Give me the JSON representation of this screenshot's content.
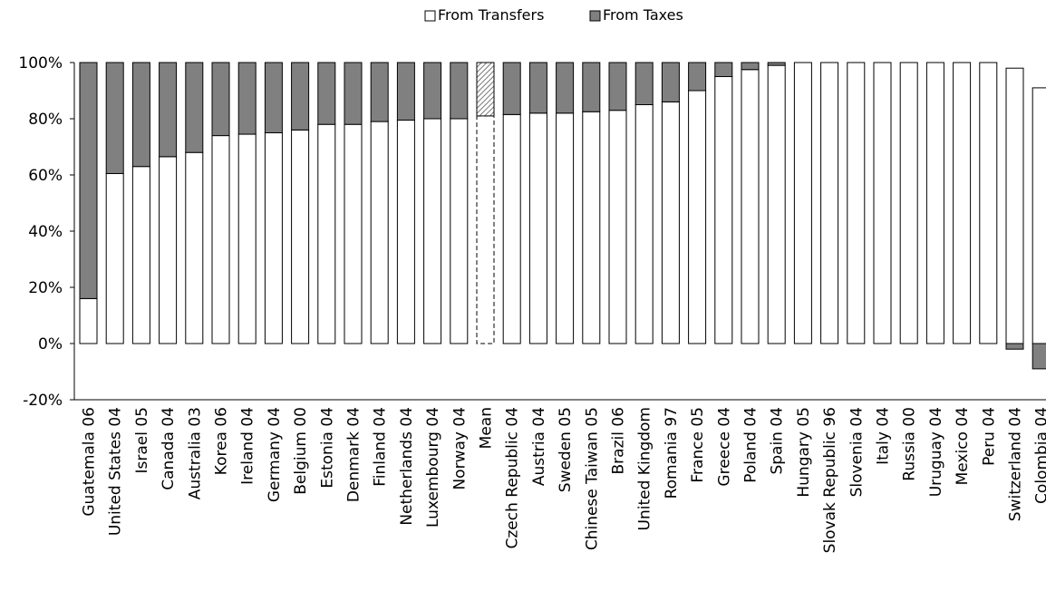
{
  "chart_data": {
    "type": "bar",
    "stacked": true,
    "legend": {
      "position": "top-center",
      "items": [
        {
          "label": "From Transfers",
          "color": "#ffffff"
        },
        {
          "label": "From Taxes",
          "color": "#808080"
        }
      ]
    },
    "yticks": [
      "-20%",
      "0%",
      "20%",
      "40%",
      "60%",
      "80%",
      "100%"
    ],
    "ylim": [
      -20,
      100
    ],
    "grid": false,
    "highlight_category": "Mean",
    "categories": [
      "Guatemala 06",
      "United States 04",
      "Israel 05",
      "Canada 04",
      "Australia 03",
      "Korea 06",
      "Ireland 04",
      "Germany 04",
      "Belgium 00",
      "Estonia 04",
      "Denmark 04",
      "Finland 04",
      "Netherlands 04",
      "Luxembourg 04",
      "Norway 04",
      "Mean",
      "Czech Republic 04",
      "Austria 04",
      "Sweden 05",
      "Chinese Taiwan 05",
      "Brazil 06",
      "United Kingdom",
      "Romania 97",
      "France 05",
      "Greece 04",
      "Poland 04",
      "Spain 04",
      "Hungary 05",
      "Slovak Republic 96",
      "Slovenia 04",
      "Italy 04",
      "Russia 00",
      "Uruguay 04",
      "Mexico 04",
      "Peru 04",
      "Switzerland 04",
      "Colombia 04"
    ],
    "series": [
      {
        "name": "From Transfers",
        "color": "#ffffff",
        "values": [
          16,
          60.5,
          63,
          66.5,
          68,
          74,
          74.5,
          75,
          76,
          78,
          78,
          79,
          79.5,
          80,
          80,
          81,
          81.5,
          82,
          82,
          82.5,
          83,
          85,
          86,
          90,
          95,
          97.5,
          99,
          100,
          100,
          100,
          100,
          100,
          100,
          100,
          100,
          98,
          91
        ]
      },
      {
        "name": "From Taxes",
        "color": "#808080",
        "values": [
          84,
          39.5,
          37,
          33.5,
          32,
          26,
          25.5,
          25,
          24,
          22,
          22,
          21,
          20.5,
          20,
          20,
          19,
          18.5,
          18,
          18,
          17.5,
          17,
          15,
          14,
          10,
          5,
          2.5,
          1,
          0,
          0,
          0,
          0,
          0,
          0,
          0,
          0,
          -2,
          -9
        ]
      }
    ]
  }
}
